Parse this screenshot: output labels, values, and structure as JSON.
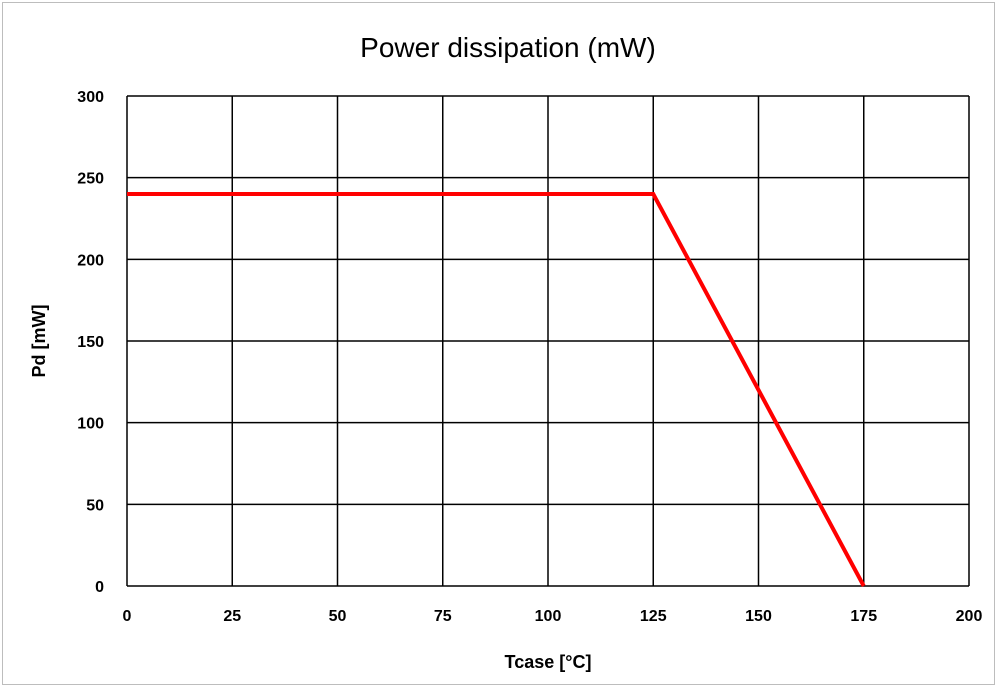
{
  "chart_data": {
    "type": "line",
    "title": "Power dissipation (mW)",
    "xlabel": "Tcase [°C]",
    "ylabel": "Pd [mW]",
    "xlim": [
      0,
      200
    ],
    "ylim": [
      0,
      300
    ],
    "x_ticks": [
      "0",
      "25",
      "50",
      "75",
      "100",
      "125",
      "150",
      "175",
      "200"
    ],
    "y_ticks": [
      "0",
      "50",
      "100",
      "150",
      "200",
      "250",
      "300"
    ],
    "grid": true,
    "series": [
      {
        "color": "#ff0000",
        "points": [
          {
            "x": 0,
            "y": 240
          },
          {
            "x": 125,
            "y": 240
          },
          {
            "x": 175,
            "y": 0
          }
        ]
      }
    ]
  }
}
